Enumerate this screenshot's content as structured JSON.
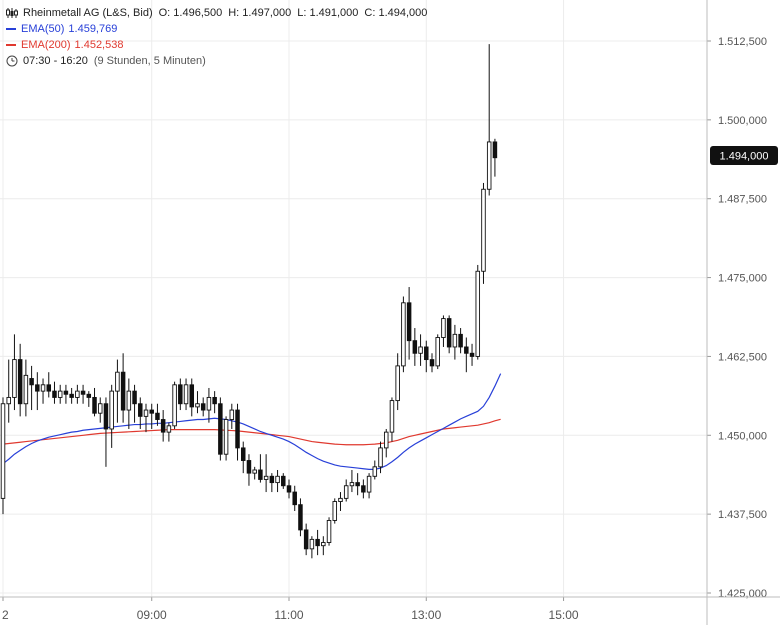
{
  "legend": {
    "symbol": "Rheinmetall AG (L&S, Bid)",
    "open": "O: 1.496,500",
    "high": "H: 1.497,000",
    "low": "L: 1.491,000",
    "close": "C: 1.494,000",
    "ema50_label": "EMA(50)",
    "ema50_value": "1.459,769",
    "ema200_label": "EMA(200)",
    "ema200_value": "1.452,538",
    "session": "07:30 - 16:20",
    "interval": "(9 Stunden, 5 Minuten)"
  },
  "colors": {
    "ema50": "#2840d8",
    "ema200": "#e0392f",
    "candle": "#111111",
    "grid": "#ececec",
    "axis": "#555555",
    "badge_bg": "#111111",
    "badge_text": "#ffffff"
  },
  "price_badge": "1.494,000",
  "chart_data": {
    "type": "candlestick",
    "title": "Rheinmetall AG (L&S, Bid)",
    "ylim": [
      1420,
      1517
    ],
    "y_ticks": [
      {
        "value": 1512.5,
        "label": "1.512,500"
      },
      {
        "value": 1500.0,
        "label": "1.500,000"
      },
      {
        "value": 1487.5,
        "label": "1.487,500"
      },
      {
        "value": 1475.0,
        "label": "1.475,000"
      },
      {
        "value": 1462.5,
        "label": "1.462,500"
      },
      {
        "value": 1450.0,
        "label": "1.450,000"
      },
      {
        "value": 1437.5,
        "label": "1.437,500"
      },
      {
        "value": 1425.0,
        "label": "1.425,000"
      }
    ],
    "x_ticks": [
      {
        "index": 0,
        "label": "2"
      },
      {
        "index": 26,
        "label": "09:00"
      },
      {
        "index": 50,
        "label": "11:00"
      },
      {
        "index": 74,
        "label": "13:00"
      },
      {
        "index": 98,
        "label": "15:00"
      }
    ],
    "candles": [
      [
        1440.0,
        1456.0,
        1437.5,
        1455.0
      ],
      [
        1455.0,
        1462.0,
        1452.0,
        1456.0
      ],
      [
        1456.0,
        1466.0,
        1454.0,
        1462.0
      ],
      [
        1462.0,
        1464.5,
        1453.0,
        1455.0
      ],
      [
        1455.0,
        1462.0,
        1453.0,
        1459.5
      ],
      [
        1459.0,
        1461.0,
        1454.0,
        1458.0
      ],
      [
        1458.0,
        1460.0,
        1454.0,
        1457.0
      ],
      [
        1457.0,
        1459.0,
        1455.0,
        1458.0
      ],
      [
        1458.0,
        1460.0,
        1456.0,
        1457.0
      ],
      [
        1457.0,
        1458.5,
        1455.0,
        1456.0
      ],
      [
        1456.0,
        1458.0,
        1455.0,
        1457.0
      ],
      [
        1457.0,
        1458.0,
        1455.0,
        1456.5
      ],
      [
        1456.5,
        1457.5,
        1455.0,
        1456.0
      ],
      [
        1456.0,
        1458.0,
        1455.0,
        1457.0
      ],
      [
        1457.0,
        1458.0,
        1455.0,
        1456.5
      ],
      [
        1456.5,
        1457.0,
        1454.5,
        1456.0
      ],
      [
        1456.0,
        1457.5,
        1453.0,
        1453.5
      ],
      [
        1453.5,
        1456.0,
        1452.0,
        1455.0
      ],
      [
        1455.0,
        1456.0,
        1445.0,
        1451.0
      ],
      [
        1451.0,
        1458.0,
        1448.0,
        1457.0
      ],
      [
        1457.0,
        1462.0,
        1452.0,
        1460.0
      ],
      [
        1460.0,
        1463.0,
        1452.0,
        1454.0
      ],
      [
        1454.0,
        1459.0,
        1451.0,
        1457.0
      ],
      [
        1457.0,
        1458.0,
        1452.0,
        1455.0
      ],
      [
        1455.0,
        1456.0,
        1451.0,
        1453.0
      ],
      [
        1453.0,
        1455.0,
        1450.5,
        1454.0
      ],
      [
        1454.0,
        1455.0,
        1451.0,
        1453.5
      ],
      [
        1453.5,
        1455.0,
        1451.5,
        1452.5
      ],
      [
        1452.5,
        1454.0,
        1449.0,
        1450.5
      ],
      [
        1450.5,
        1452.0,
        1449.0,
        1451.5
      ],
      [
        1451.5,
        1458.5,
        1451.0,
        1458.0
      ],
      [
        1458.0,
        1459.0,
        1454.0,
        1455.0
      ],
      [
        1455.0,
        1459.0,
        1454.0,
        1458.0
      ],
      [
        1458.0,
        1459.0,
        1453.0,
        1454.5
      ],
      [
        1454.5,
        1457.0,
        1453.5,
        1455.0
      ],
      [
        1455.0,
        1456.0,
        1453.0,
        1454.0
      ],
      [
        1454.0,
        1457.5,
        1452.0,
        1456.0
      ],
      [
        1456.0,
        1457.0,
        1453.5,
        1455.0
      ],
      [
        1455.0,
        1456.0,
        1446.0,
        1447.0
      ],
      [
        1447.0,
        1453.0,
        1446.0,
        1452.5
      ],
      [
        1452.5,
        1455.0,
        1451.0,
        1454.0
      ],
      [
        1454.0,
        1455.0,
        1446.0,
        1448.0
      ],
      [
        1448.0,
        1449.0,
        1444.0,
        1446.0
      ],
      [
        1446.0,
        1447.0,
        1442.0,
        1444.0
      ],
      [
        1444.0,
        1445.0,
        1443.0,
        1444.5
      ],
      [
        1444.5,
        1447.0,
        1442.5,
        1443.0
      ],
      [
        1443.0,
        1447.0,
        1441.0,
        1443.5
      ],
      [
        1443.5,
        1444.0,
        1441.0,
        1442.5
      ],
      [
        1442.5,
        1444.5,
        1441.0,
        1443.5
      ],
      [
        1443.5,
        1444.0,
        1441.5,
        1442.0
      ],
      [
        1442.0,
        1443.0,
        1440.0,
        1441.0
      ],
      [
        1441.0,
        1442.0,
        1438.0,
        1439.0
      ],
      [
        1439.0,
        1440.0,
        1434.0,
        1435.0
      ],
      [
        1435.0,
        1436.0,
        1431.0,
        1432.0
      ],
      [
        1432.0,
        1434.0,
        1430.5,
        1433.5
      ],
      [
        1433.5,
        1435.0,
        1431.0,
        1432.5
      ],
      [
        1432.5,
        1434.0,
        1431.0,
        1433.0
      ],
      [
        1433.0,
        1437.0,
        1432.5,
        1436.5
      ],
      [
        1436.5,
        1440.0,
        1436.0,
        1439.5
      ],
      [
        1439.5,
        1441.0,
        1438.0,
        1440.0
      ],
      [
        1440.0,
        1443.0,
        1439.5,
        1442.0
      ],
      [
        1442.0,
        1444.5,
        1441.0,
        1442.5
      ],
      [
        1442.5,
        1444.0,
        1440.5,
        1442.0
      ],
      [
        1442.0,
        1443.0,
        1440.0,
        1441.0
      ],
      [
        1441.0,
        1444.0,
        1440.0,
        1443.5
      ],
      [
        1443.5,
        1446.0,
        1443.0,
        1445.0
      ],
      [
        1445.0,
        1449.0,
        1444.0,
        1448.0
      ],
      [
        1448.0,
        1451.0,
        1446.5,
        1450.5
      ],
      [
        1450.5,
        1456.0,
        1449.0,
        1455.5
      ],
      [
        1455.5,
        1463.0,
        1454.0,
        1461.0
      ],
      [
        1461.0,
        1472.0,
        1460.0,
        1471.0
      ],
      [
        1471.0,
        1473.5,
        1462.0,
        1465.0
      ],
      [
        1465.0,
        1467.0,
        1461.0,
        1463.0
      ],
      [
        1463.0,
        1466.0,
        1461.0,
        1464.0
      ],
      [
        1464.0,
        1465.0,
        1460.0,
        1462.0
      ],
      [
        1462.0,
        1463.0,
        1460.0,
        1461.0
      ],
      [
        1461.0,
        1466.0,
        1460.5,
        1465.5
      ],
      [
        1465.5,
        1469.0,
        1464.0,
        1468.5
      ],
      [
        1468.5,
        1469.0,
        1463.0,
        1464.0
      ],
      [
        1464.0,
        1467.5,
        1462.0,
        1466.0
      ],
      [
        1466.0,
        1467.0,
        1463.0,
        1464.0
      ],
      [
        1464.0,
        1465.5,
        1460.0,
        1463.0
      ],
      [
        1463.0,
        1464.5,
        1461.0,
        1462.5
      ],
      [
        1462.5,
        1477.0,
        1462.0,
        1476.0
      ],
      [
        1476.0,
        1490.0,
        1474.0,
        1489.0
      ],
      [
        1489.0,
        1512.0,
        1488.0,
        1496.5
      ],
      [
        1496.5,
        1497.0,
        1491.0,
        1494.0
      ]
    ],
    "series": [
      {
        "name": "EMA(50)",
        "values": [
          1445.5,
          1446.2,
          1447.0,
          1447.6,
          1448.2,
          1448.7,
          1449.1,
          1449.4,
          1449.7,
          1449.9,
          1450.1,
          1450.3,
          1450.5,
          1450.6,
          1450.8,
          1450.9,
          1451.0,
          1451.1,
          1451.2,
          1451.3,
          1451.4,
          1451.5,
          1451.6,
          1451.7,
          1451.7,
          1451.8,
          1451.8,
          1451.9,
          1451.9,
          1452.0,
          1452.1,
          1452.2,
          1452.3,
          1452.4,
          1452.5,
          1452.5,
          1452.6,
          1452.7,
          1452.6,
          1452.5,
          1452.3,
          1452.1,
          1451.8,
          1451.4,
          1451.0,
          1450.6,
          1450.3,
          1450.0,
          1449.7,
          1449.4,
          1449.0,
          1448.5,
          1447.9,
          1447.3,
          1446.8,
          1446.3,
          1445.9,
          1445.6,
          1445.3,
          1445.1,
          1445.0,
          1444.9,
          1444.8,
          1444.7,
          1444.6,
          1444.6,
          1444.8,
          1445.2,
          1445.8,
          1446.5,
          1447.3,
          1448.0,
          1448.6,
          1449.1,
          1449.6,
          1450.1,
          1450.6,
          1451.1,
          1451.6,
          1452.1,
          1452.6,
          1453.0,
          1453.4,
          1453.8,
          1454.6,
          1456.0,
          1457.8,
          1459.769
        ]
      },
      {
        "name": "EMA(200)",
        "values": [
          1448.6,
          1448.7,
          1448.8,
          1448.9,
          1449.0,
          1449.1,
          1449.2,
          1449.3,
          1449.4,
          1449.5,
          1449.6,
          1449.7,
          1449.8,
          1449.9,
          1450.0,
          1450.1,
          1450.2,
          1450.3,
          1450.35,
          1450.4,
          1450.45,
          1450.5,
          1450.55,
          1450.6,
          1450.65,
          1450.7,
          1450.75,
          1450.8,
          1450.85,
          1450.9,
          1450.9,
          1450.9,
          1450.9,
          1450.9,
          1450.9,
          1450.9,
          1450.9,
          1450.9,
          1450.85,
          1450.8,
          1450.75,
          1450.7,
          1450.6,
          1450.5,
          1450.4,
          1450.3,
          1450.2,
          1450.1,
          1450.0,
          1449.9,
          1449.8,
          1449.6,
          1449.4,
          1449.2,
          1449.0,
          1448.9,
          1448.8,
          1448.7,
          1448.6,
          1448.55,
          1448.5,
          1448.5,
          1448.5,
          1448.5,
          1448.55,
          1448.6,
          1448.7,
          1448.8,
          1449.0,
          1449.2,
          1449.5,
          1449.8,
          1450.0,
          1450.2,
          1450.4,
          1450.6,
          1450.8,
          1451.0,
          1451.1,
          1451.2,
          1451.3,
          1451.4,
          1451.5,
          1451.6,
          1451.8,
          1452.0,
          1452.3,
          1452.538
        ]
      }
    ]
  }
}
